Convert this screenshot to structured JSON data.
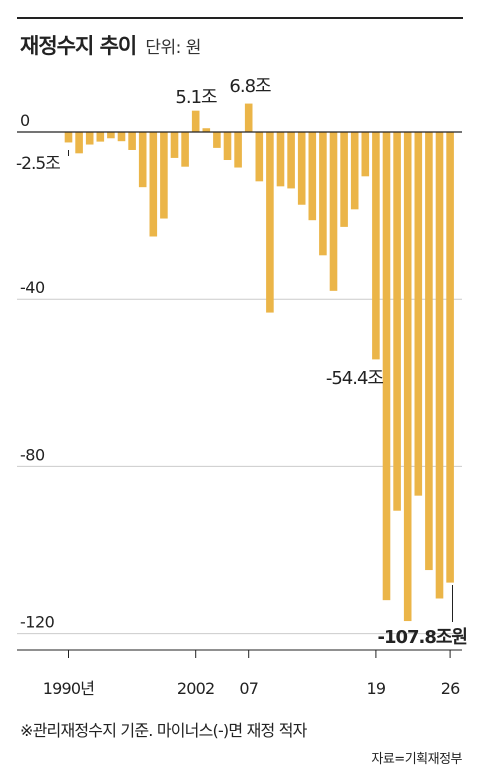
{
  "header": {
    "title": "재정수지 추이",
    "unit": "단위: 원"
  },
  "chart_data": {
    "type": "bar",
    "title": "재정수지 추이",
    "unit": "단위: 원",
    "ylim": [
      -130,
      0
    ],
    "yticks": [
      {
        "value": 0,
        "label": "0"
      },
      {
        "value": -40,
        "label": "-40"
      },
      {
        "value": -80,
        "label": "-80"
      },
      {
        "value": -120,
        "label": "-120"
      }
    ],
    "years": [
      1990,
      1991,
      1992,
      1993,
      1994,
      1995,
      1996,
      1997,
      1998,
      1999,
      2000,
      2001,
      2002,
      2003,
      2004,
      2005,
      2006,
      2007,
      2008,
      2009,
      2010,
      2011,
      2012,
      2013,
      2014,
      2015,
      2016,
      2017,
      2018,
      2019,
      2020,
      2021,
      2022,
      2023,
      2024,
      2025,
      2026
    ],
    "values": [
      -2.5,
      -5.1,
      -3,
      -2.3,
      -1.5,
      -2.2,
      -4.3,
      -13.2,
      -25,
      -20.7,
      -6.2,
      -8.3,
      5.1,
      0.9,
      -3.8,
      -6.7,
      -8.5,
      6.8,
      -11.8,
      -43.2,
      -13,
      -13.5,
      -17.4,
      -21.1,
      -29.5,
      -38.0,
      -22.7,
      -18.5,
      -10.6,
      -54.4,
      -112,
      -90.6,
      -117.0,
      -87.0,
      -104.8,
      -111.6,
      -107.8
    ],
    "xtick_labels": [
      {
        "year": 1990,
        "label": "1990년"
      },
      {
        "year": 2002,
        "label": "2002"
      },
      {
        "year": 2007,
        "label": "07"
      },
      {
        "year": 2019,
        "label": "19"
      },
      {
        "year": 2026,
        "label": "26"
      }
    ],
    "annotations": [
      {
        "year": 1990,
        "text": "-2.5조"
      },
      {
        "year": 2002,
        "text": "5.1조"
      },
      {
        "year": 2007,
        "text": "6.8조"
      },
      {
        "year": 2019,
        "text": "-54.4조"
      },
      {
        "year": 2026,
        "text": "-107.8조원"
      }
    ],
    "colors": {
      "bar": "#ebb548",
      "grid": "#cccccc",
      "axis": "#222222",
      "text": "#222222"
    }
  },
  "footnote": "※관리재정수지 기준. 마이너스(-)면 재정 적자",
  "source": "자료=기획재정부"
}
